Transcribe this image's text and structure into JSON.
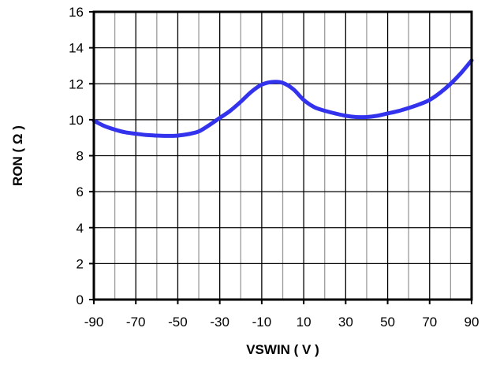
{
  "chart_data": {
    "type": "line",
    "title": "",
    "xlabel": "VSWIN ( V )",
    "ylabel": "RON ( Ω )",
    "xlim": [
      -90,
      90
    ],
    "ylim": [
      0,
      16
    ],
    "x_ticks": [
      "-90",
      "-70",
      "-50",
      "-30",
      "-10",
      "10",
      "30",
      "50",
      "70",
      "90"
    ],
    "y_ticks": [
      "0",
      "2",
      "4",
      "6",
      "8",
      "10",
      "12",
      "14",
      "16"
    ],
    "grid": true,
    "legend": "none",
    "line_color": "#3333ee",
    "series": [
      {
        "x": [
          -90,
          -85,
          -80,
          -75,
          -70,
          -65,
          -60,
          -55,
          -50,
          -45,
          -40,
          -35,
          -30,
          -25,
          -20,
          -15,
          -10,
          -5,
          0,
          5,
          10,
          15,
          20,
          25,
          30,
          35,
          40,
          45,
          50,
          55,
          60,
          65,
          70,
          75,
          80,
          85,
          90
        ],
        "y": [
          9.95,
          9.65,
          9.45,
          9.3,
          9.22,
          9.15,
          9.12,
          9.1,
          9.12,
          9.2,
          9.35,
          9.7,
          10.1,
          10.5,
          11.0,
          11.55,
          11.95,
          12.1,
          12.05,
          11.7,
          11.1,
          10.7,
          10.5,
          10.35,
          10.22,
          10.15,
          10.15,
          10.22,
          10.35,
          10.48,
          10.65,
          10.85,
          11.1,
          11.5,
          12.0,
          12.6,
          13.3
        ]
      }
    ]
  }
}
